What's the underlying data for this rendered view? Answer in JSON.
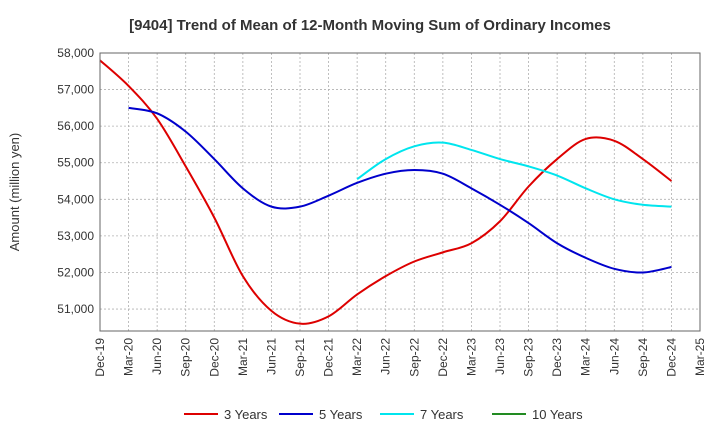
{
  "chart_data": {
    "type": "line",
    "title": "[9404]  Trend of Mean of 12-Month Moving Sum of Ordinary Incomes",
    "xlabel": "",
    "ylabel": "Amount (million yen)",
    "ylim": [
      50400,
      58000
    ],
    "y_ticks": [
      51000,
      52000,
      53000,
      54000,
      55000,
      56000,
      57000,
      58000
    ],
    "y_tick_labels": [
      "51,000",
      "52,000",
      "53,000",
      "54,000",
      "55,000",
      "56,000",
      "57,000",
      "58,000"
    ],
    "x_tick_labels": [
      "Dec-19",
      "Mar-20",
      "Jun-20",
      "Sep-20",
      "Dec-20",
      "Mar-21",
      "Jun-21",
      "Sep-21",
      "Dec-21",
      "Mar-22",
      "Jun-22",
      "Sep-22",
      "Dec-22",
      "Mar-23",
      "Jun-23",
      "Sep-23",
      "Dec-23",
      "Mar-24",
      "Jun-24",
      "Sep-24",
      "Dec-24",
      "Mar-25"
    ],
    "grid": true,
    "legend_position": "bottom",
    "series": [
      {
        "name": "3 Years",
        "color": "#dd0000",
        "x": [
          0,
          1,
          2,
          3,
          4,
          5,
          6,
          7,
          8,
          9,
          10,
          11,
          12,
          13,
          14,
          15,
          16,
          17,
          18,
          19,
          20
        ],
        "values": [
          57800,
          57100,
          56200,
          54900,
          53500,
          51900,
          50950,
          50600,
          50800,
          51400,
          51900,
          52300,
          52550,
          52800,
          53400,
          54350,
          55100,
          55650,
          55600,
          55100,
          54500
        ]
      },
      {
        "name": "5 Years",
        "color": "#0000cc",
        "x": [
          1,
          2,
          3,
          4,
          5,
          6,
          7,
          8,
          9,
          10,
          11,
          12,
          13,
          14,
          15,
          16,
          17,
          18,
          19,
          20
        ],
        "values": [
          56500,
          56350,
          55850,
          55100,
          54300,
          53800,
          53800,
          54100,
          54450,
          54700,
          54800,
          54700,
          54300,
          53850,
          53350,
          52800,
          52400,
          52100,
          52000,
          52150
        ]
      },
      {
        "name": "7 Years",
        "color": "#00e5ee",
        "x": [
          9,
          10,
          11,
          12,
          13,
          14,
          15,
          16,
          17,
          18,
          19,
          20
        ],
        "values": [
          54550,
          55100,
          55450,
          55550,
          55350,
          55100,
          54900,
          54650,
          54300,
          54000,
          53850,
          53800
        ]
      },
      {
        "name": "10 Years",
        "color": "#228b22",
        "x": [],
        "values": []
      }
    ]
  }
}
